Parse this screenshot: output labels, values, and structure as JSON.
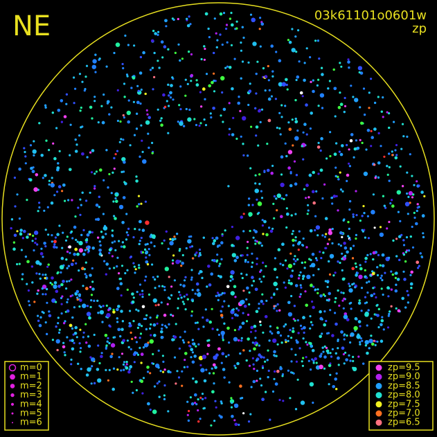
{
  "header": {
    "direction": "NE",
    "frame_id": "03k61101o0601w",
    "mode": "zp"
  },
  "magnitude_legend": {
    "items": [
      "m=0",
      "m=1",
      "m=2",
      "m=3",
      "m=4",
      "m=5",
      "m=6"
    ],
    "color": "#e020e0"
  },
  "zp_legend": {
    "items": [
      {
        "label": "zp=9.5",
        "color": "#f040f0"
      },
      {
        "label": "zp=9.0",
        "color": "#b020f0"
      },
      {
        "label": "zp=8.5",
        "color": "#20a0ff"
      },
      {
        "label": "zp=8.0",
        "color": "#20e0d0"
      },
      {
        "label": "zp=7.5",
        "color": "#f0f020"
      },
      {
        "label": "zp=7.0",
        "color": "#ff7020"
      },
      {
        "label": "zp=6.5",
        "color": "#ff7080"
      }
    ]
  }
}
